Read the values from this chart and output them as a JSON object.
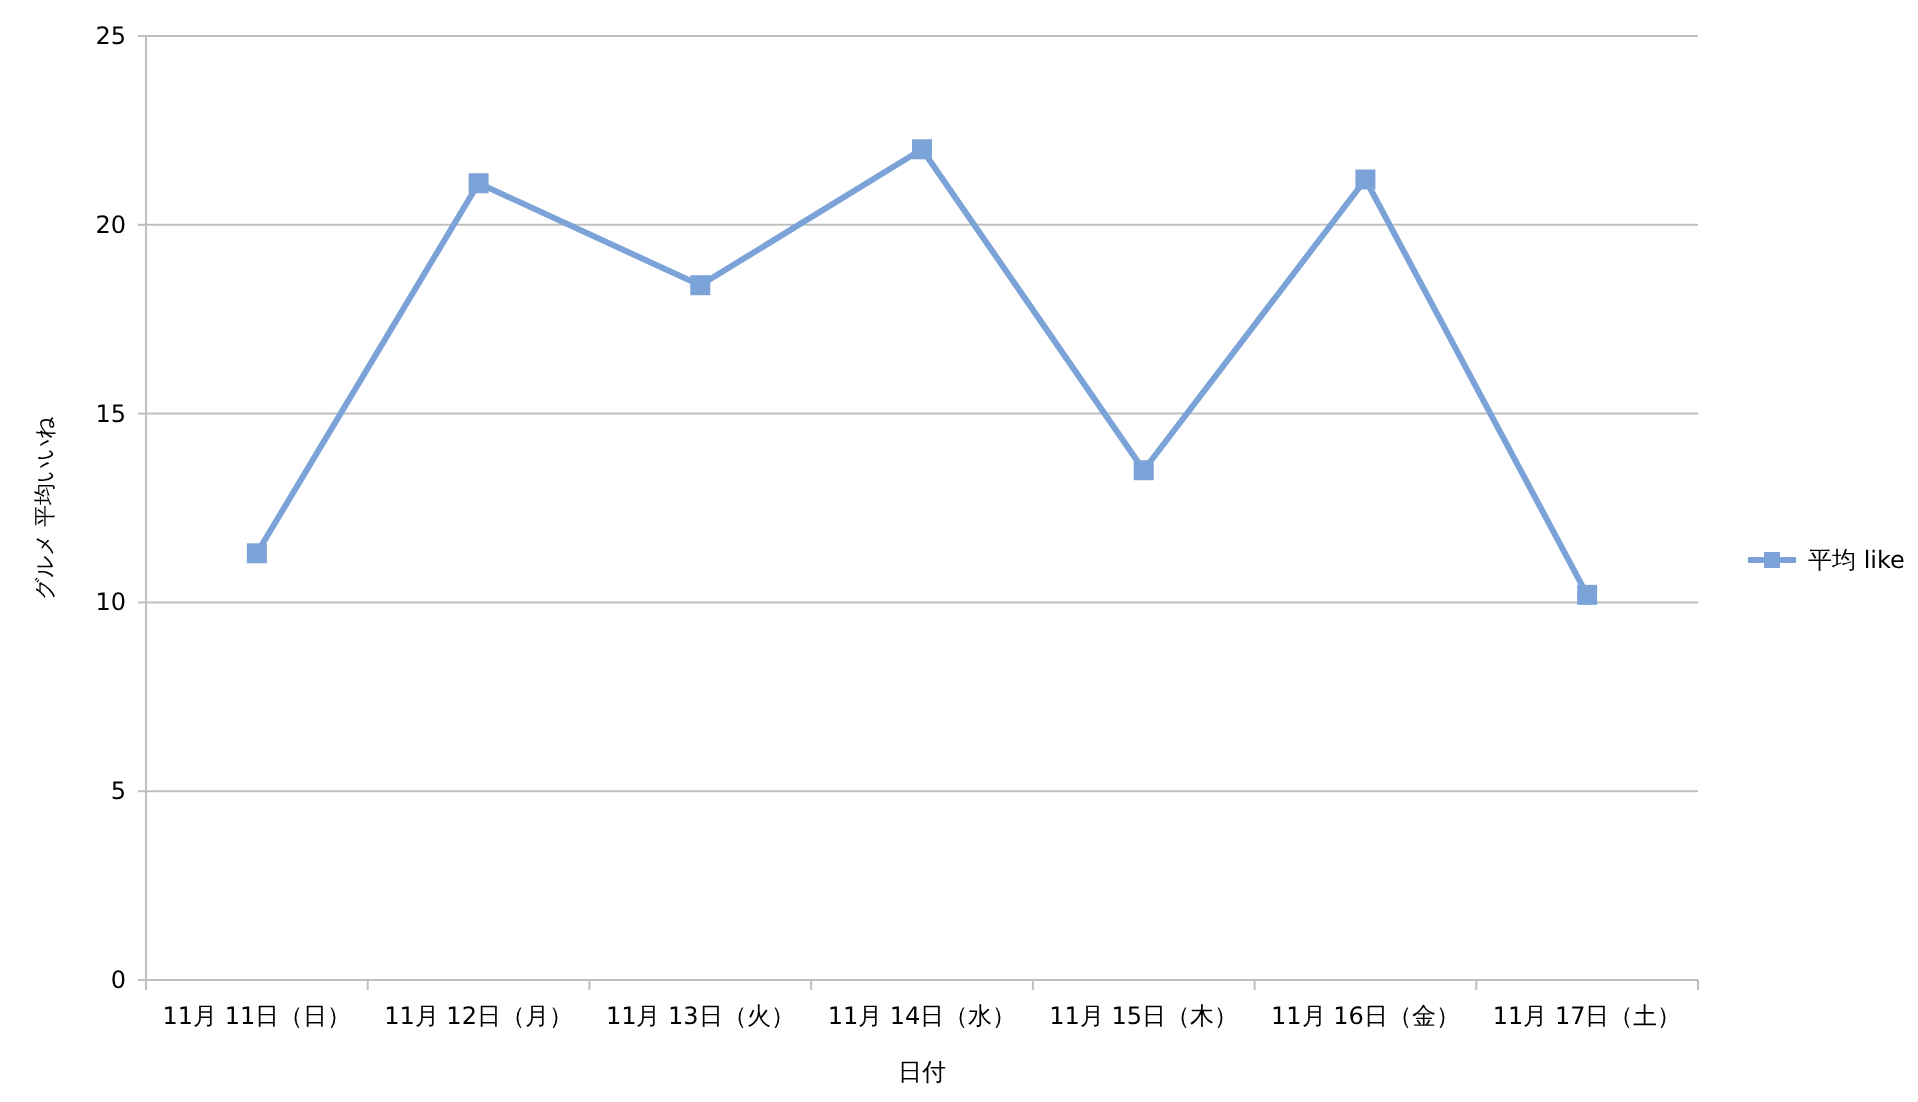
{
  "chart_data": {
    "type": "line",
    "xlabel": "日付",
    "ylabel": "グルメ 平均いいね",
    "categories": [
      "11月 11日（日）",
      "11月 12日（月）",
      "11月 13日（火）",
      "11月 14日（水）",
      "11月 15日（木）",
      "11月 16日（金）",
      "11月 17日（土）"
    ],
    "series": [
      {
        "name": "平均 like",
        "color": "#7ba3d8",
        "values": [
          11.3,
          21.1,
          18.4,
          22.0,
          13.5,
          21.2,
          10.2
        ]
      }
    ],
    "ylim": [
      0,
      25
    ],
    "yticks": [
      0,
      5,
      10,
      15,
      20,
      25
    ],
    "grid": "y",
    "legend": "right",
    "marker": "square",
    "line_style": "solid"
  }
}
